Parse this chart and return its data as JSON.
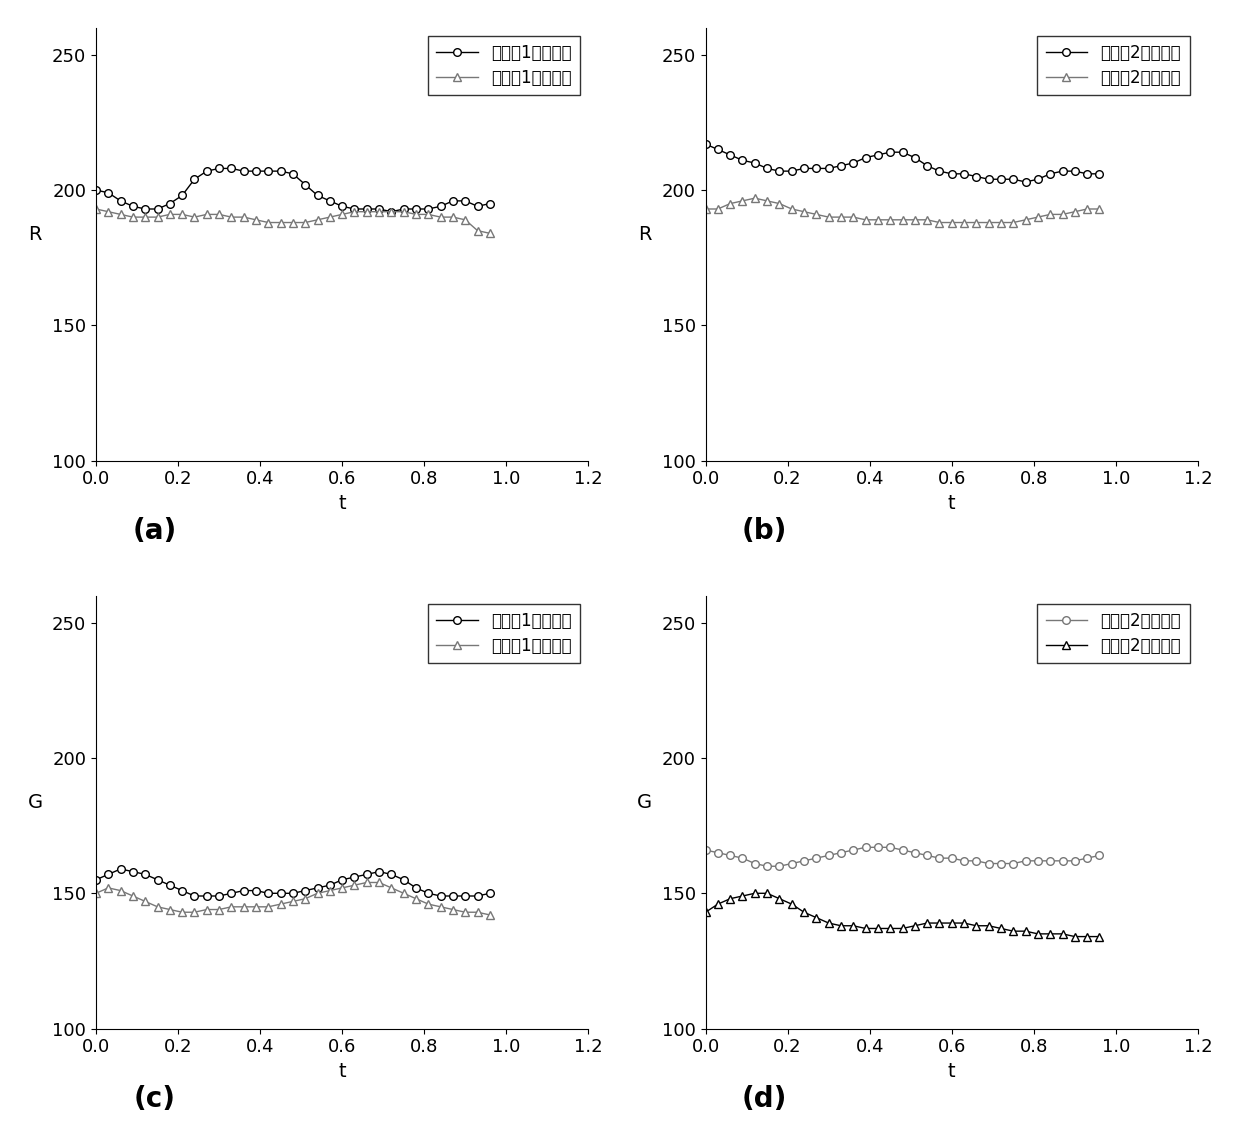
{
  "subplot_a": {
    "ylabel": "R",
    "xlabel": "t",
    "ylim": [
      100,
      260
    ],
    "xlim": [
      0,
      1.2
    ],
    "yticks": [
      100,
      150,
      200,
      250
    ],
    "xticks": [
      0,
      0.2,
      0.4,
      0.6,
      0.8,
      1.0,
      1.2
    ],
    "legend1": "环境光1单传感器",
    "legend2": "环境光1双传感器",
    "line1_color": "#000000",
    "line2_color": "#777777",
    "line1_x": [
      0,
      0.03,
      0.06,
      0.09,
      0.12,
      0.15,
      0.18,
      0.21,
      0.24,
      0.27,
      0.3,
      0.33,
      0.36,
      0.39,
      0.42,
      0.45,
      0.48,
      0.51,
      0.54,
      0.57,
      0.6,
      0.63,
      0.66,
      0.69,
      0.72,
      0.75,
      0.78,
      0.81,
      0.84,
      0.87,
      0.9,
      0.93,
      0.96
    ],
    "line1_y": [
      200,
      199,
      196,
      194,
      193,
      193,
      195,
      198,
      204,
      207,
      208,
      208,
      207,
      207,
      207,
      207,
      206,
      202,
      198,
      196,
      194,
      193,
      193,
      193,
      192,
      193,
      193,
      193,
      194,
      196,
      196,
      194,
      195
    ],
    "line2_x": [
      0,
      0.03,
      0.06,
      0.09,
      0.12,
      0.15,
      0.18,
      0.21,
      0.24,
      0.27,
      0.3,
      0.33,
      0.36,
      0.39,
      0.42,
      0.45,
      0.48,
      0.51,
      0.54,
      0.57,
      0.6,
      0.63,
      0.66,
      0.69,
      0.72,
      0.75,
      0.78,
      0.81,
      0.84,
      0.87,
      0.9,
      0.93,
      0.96
    ],
    "line2_y": [
      193,
      192,
      191,
      190,
      190,
      190,
      191,
      191,
      190,
      191,
      191,
      190,
      190,
      189,
      188,
      188,
      188,
      188,
      189,
      190,
      191,
      192,
      192,
      192,
      192,
      192,
      191,
      191,
      190,
      190,
      189,
      185,
      184
    ],
    "caption": "(a)"
  },
  "subplot_b": {
    "ylabel": "R",
    "xlabel": "t",
    "ylim": [
      100,
      260
    ],
    "xlim": [
      0,
      1.2
    ],
    "yticks": [
      100,
      150,
      200,
      250
    ],
    "xticks": [
      0,
      0.2,
      0.4,
      0.6,
      0.8,
      1.0,
      1.2
    ],
    "legend1": "环境光2单传感器",
    "legend2": "环境光2双传感器",
    "line1_color": "#000000",
    "line2_color": "#777777",
    "line1_x": [
      0,
      0.03,
      0.06,
      0.09,
      0.12,
      0.15,
      0.18,
      0.21,
      0.24,
      0.27,
      0.3,
      0.33,
      0.36,
      0.39,
      0.42,
      0.45,
      0.48,
      0.51,
      0.54,
      0.57,
      0.6,
      0.63,
      0.66,
      0.69,
      0.72,
      0.75,
      0.78,
      0.81,
      0.84,
      0.87,
      0.9,
      0.93,
      0.96
    ],
    "line1_y": [
      217,
      215,
      213,
      211,
      210,
      208,
      207,
      207,
      208,
      208,
      208,
      209,
      210,
      212,
      213,
      214,
      214,
      212,
      209,
      207,
      206,
      206,
      205,
      204,
      204,
      204,
      203,
      204,
      206,
      207,
      207,
      206,
      206
    ],
    "line2_x": [
      0,
      0.03,
      0.06,
      0.09,
      0.12,
      0.15,
      0.18,
      0.21,
      0.24,
      0.27,
      0.3,
      0.33,
      0.36,
      0.39,
      0.42,
      0.45,
      0.48,
      0.51,
      0.54,
      0.57,
      0.6,
      0.63,
      0.66,
      0.69,
      0.72,
      0.75,
      0.78,
      0.81,
      0.84,
      0.87,
      0.9,
      0.93,
      0.96
    ],
    "line2_y": [
      193,
      193,
      195,
      196,
      197,
      196,
      195,
      193,
      192,
      191,
      190,
      190,
      190,
      189,
      189,
      189,
      189,
      189,
      189,
      188,
      188,
      188,
      188,
      188,
      188,
      188,
      189,
      190,
      191,
      191,
      192,
      193,
      193
    ],
    "caption": "(b)"
  },
  "subplot_c": {
    "ylabel": "G",
    "xlabel": "t",
    "ylim": [
      100,
      260
    ],
    "xlim": [
      0,
      1.2
    ],
    "yticks": [
      100,
      150,
      200,
      250
    ],
    "xticks": [
      0,
      0.2,
      0.4,
      0.6,
      0.8,
      1.0,
      1.2
    ],
    "legend1": "环境光1单传感器",
    "legend2": "环境光1双传感器",
    "line1_color": "#000000",
    "line2_color": "#777777",
    "line1_x": [
      0,
      0.03,
      0.06,
      0.09,
      0.12,
      0.15,
      0.18,
      0.21,
      0.24,
      0.27,
      0.3,
      0.33,
      0.36,
      0.39,
      0.42,
      0.45,
      0.48,
      0.51,
      0.54,
      0.57,
      0.6,
      0.63,
      0.66,
      0.69,
      0.72,
      0.75,
      0.78,
      0.81,
      0.84,
      0.87,
      0.9,
      0.93,
      0.96
    ],
    "line1_y": [
      155,
      157,
      159,
      158,
      157,
      155,
      153,
      151,
      149,
      149,
      149,
      150,
      151,
      151,
      150,
      150,
      150,
      151,
      152,
      153,
      155,
      156,
      157,
      158,
      157,
      155,
      152,
      150,
      149,
      149,
      149,
      149,
      150
    ],
    "line2_x": [
      0,
      0.03,
      0.06,
      0.09,
      0.12,
      0.15,
      0.18,
      0.21,
      0.24,
      0.27,
      0.3,
      0.33,
      0.36,
      0.39,
      0.42,
      0.45,
      0.48,
      0.51,
      0.54,
      0.57,
      0.6,
      0.63,
      0.66,
      0.69,
      0.72,
      0.75,
      0.78,
      0.81,
      0.84,
      0.87,
      0.9,
      0.93,
      0.96
    ],
    "line2_y": [
      150,
      152,
      151,
      149,
      147,
      145,
      144,
      143,
      143,
      144,
      144,
      145,
      145,
      145,
      145,
      146,
      147,
      148,
      150,
      151,
      152,
      153,
      154,
      154,
      152,
      150,
      148,
      146,
      145,
      144,
      143,
      143,
      142
    ],
    "caption": "(c)"
  },
  "subplot_d": {
    "ylabel": "G",
    "xlabel": "t",
    "ylim": [
      100,
      260
    ],
    "xlim": [
      0,
      1.2
    ],
    "yticks": [
      100,
      150,
      200,
      250
    ],
    "xticks": [
      0,
      0.2,
      0.4,
      0.6,
      0.8,
      1.0,
      1.2
    ],
    "legend1": "环境光2单传感器",
    "legend2": "环境光2双传感器",
    "line1_color": "#777777",
    "line2_color": "#000000",
    "line1_x": [
      0,
      0.03,
      0.06,
      0.09,
      0.12,
      0.15,
      0.18,
      0.21,
      0.24,
      0.27,
      0.3,
      0.33,
      0.36,
      0.39,
      0.42,
      0.45,
      0.48,
      0.51,
      0.54,
      0.57,
      0.6,
      0.63,
      0.66,
      0.69,
      0.72,
      0.75,
      0.78,
      0.81,
      0.84,
      0.87,
      0.9,
      0.93,
      0.96
    ],
    "line1_y": [
      166,
      165,
      164,
      163,
      161,
      160,
      160,
      161,
      162,
      163,
      164,
      165,
      166,
      167,
      167,
      167,
      166,
      165,
      164,
      163,
      163,
      162,
      162,
      161,
      161,
      161,
      162,
      162,
      162,
      162,
      162,
      163,
      164
    ],
    "line2_x": [
      0,
      0.03,
      0.06,
      0.09,
      0.12,
      0.15,
      0.18,
      0.21,
      0.24,
      0.27,
      0.3,
      0.33,
      0.36,
      0.39,
      0.42,
      0.45,
      0.48,
      0.51,
      0.54,
      0.57,
      0.6,
      0.63,
      0.66,
      0.69,
      0.72,
      0.75,
      0.78,
      0.81,
      0.84,
      0.87,
      0.9,
      0.93,
      0.96
    ],
    "line2_y": [
      143,
      146,
      148,
      149,
      150,
      150,
      148,
      146,
      143,
      141,
      139,
      138,
      138,
      137,
      137,
      137,
      137,
      138,
      139,
      139,
      139,
      139,
      138,
      138,
      137,
      136,
      136,
      135,
      135,
      135,
      134,
      134,
      134
    ],
    "caption": "(d)"
  },
  "bg_color": "#ffffff",
  "label_fontsize": 14,
  "tick_fontsize": 13,
  "legend_fontsize": 12,
  "caption_fontsize": 20
}
